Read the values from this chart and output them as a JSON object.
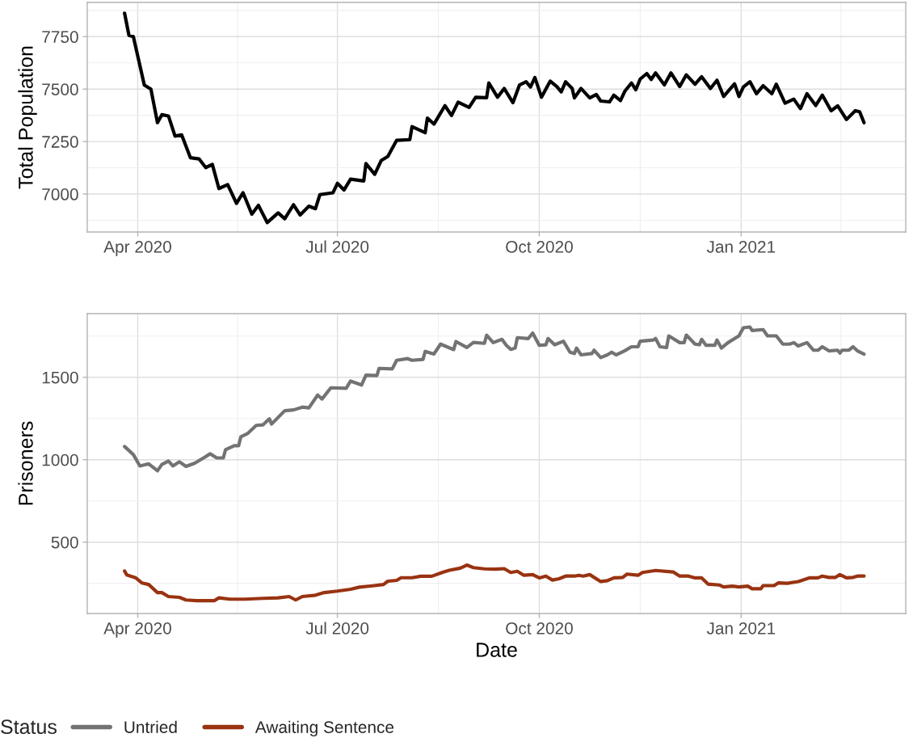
{
  "chart_data": [
    {
      "type": "line",
      "ylabel": "Total Population",
      "grid": true,
      "legend": false,
      "xlim": [
        "2020-03-09",
        "2021-03-17"
      ],
      "ylim": [
        6819,
        7913
      ],
      "yticks": [
        7000,
        7250,
        7500,
        7750
      ],
      "xticks": [
        {
          "value": "2020-04-01",
          "label": "Apr 2020"
        },
        {
          "value": "2020-07-01",
          "label": "Jul 2020"
        },
        {
          "value": "2020-10-01",
          "label": "Oct 2020"
        },
        {
          "value": "2021-01-01",
          "label": "Jan 2021"
        }
      ],
      "series": [
        {
          "color": "#000000",
          "x": [
            "2020-03-26",
            "2020-03-28",
            "2020-03-30",
            "2020-04-04",
            "2020-04-07",
            "2020-04-10",
            "2020-04-12",
            "2020-04-15",
            "2020-04-18",
            "2020-04-21",
            "2020-04-25",
            "2020-04-29",
            "2020-05-02",
            "2020-05-05",
            "2020-05-08",
            "2020-05-12",
            "2020-05-16",
            "2020-05-19",
            "2020-05-23",
            "2020-05-26",
            "2020-05-30",
            "2020-06-04",
            "2020-06-07",
            "2020-06-11",
            "2020-06-14",
            "2020-06-18",
            "2020-06-21",
            "2020-06-23",
            "2020-06-29",
            "2020-07-01",
            "2020-07-04",
            "2020-07-07",
            "2020-07-13",
            "2020-07-14",
            "2020-07-18",
            "2020-07-21",
            "2020-07-24",
            "2020-07-28",
            "2020-08-03",
            "2020-08-04",
            "2020-08-10",
            "2020-08-11",
            "2020-08-14",
            "2020-08-19",
            "2020-08-22",
            "2020-08-25",
            "2020-08-30",
            "2020-09-02",
            "2020-09-07",
            "2020-09-08",
            "2020-09-12",
            "2020-09-15",
            "2020-09-19",
            "2020-09-22",
            "2020-09-25",
            "2020-09-27",
            "2020-09-29",
            "2020-10-02",
            "2020-10-06",
            "2020-10-09",
            "2020-10-11",
            "2020-10-13",
            "2020-10-16",
            "2020-10-17",
            "2020-10-20",
            "2020-10-24",
            "2020-10-27",
            "2020-10-29",
            "2020-11-02",
            "2020-11-04",
            "2020-11-07",
            "2020-11-09",
            "2020-11-12",
            "2020-11-14",
            "2020-11-16",
            "2020-11-19",
            "2020-11-21",
            "2020-11-23",
            "2020-11-27",
            "2020-11-30",
            "2020-12-04",
            "2020-12-07",
            "2020-12-11",
            "2020-12-14",
            "2020-12-18",
            "2020-12-21",
            "2020-12-24",
            "2020-12-29",
            "2020-12-31",
            "2021-01-02",
            "2021-01-05",
            "2021-01-08",
            "2021-01-11",
            "2021-01-15",
            "2021-01-17",
            "2021-01-21",
            "2021-01-25",
            "2021-01-28",
            "2021-01-31",
            "2021-02-04",
            "2021-02-07",
            "2021-02-11",
            "2021-02-14",
            "2021-02-18",
            "2021-02-22",
            "2021-02-24",
            "2021-02-26"
          ],
          "values": [
            7862,
            7756,
            7750,
            7519,
            7500,
            7340,
            7378,
            7372,
            7276,
            7282,
            7173,
            7167,
            7126,
            7141,
            7026,
            7045,
            6955,
            7006,
            6904,
            6946,
            6864,
            6910,
            6882,
            6949,
            6900,
            6942,
            6930,
            6997,
            7006,
            7051,
            7019,
            7071,
            7062,
            7145,
            7094,
            7160,
            7179,
            7256,
            7259,
            7321,
            7292,
            7362,
            7333,
            7421,
            7374,
            7438,
            7413,
            7461,
            7459,
            7529,
            7461,
            7503,
            7435,
            7520,
            7535,
            7510,
            7555,
            7461,
            7538,
            7512,
            7487,
            7535,
            7503,
            7458,
            7503,
            7458,
            7474,
            7443,
            7439,
            7471,
            7445,
            7490,
            7529,
            7497,
            7548,
            7574,
            7546,
            7577,
            7520,
            7577,
            7512,
            7568,
            7523,
            7559,
            7503,
            7542,
            7465,
            7525,
            7465,
            7510,
            7535,
            7478,
            7516,
            7478,
            7523,
            7433,
            7452,
            7407,
            7478,
            7422,
            7471,
            7397,
            7420,
            7355,
            7397,
            7392,
            7340
          ]
        }
      ]
    },
    {
      "type": "line",
      "xlabel": "Date",
      "ylabel": "Prisoners",
      "legend_title": "Status",
      "legend": "bottom",
      "grid": true,
      "xlim": [
        "2020-03-09",
        "2021-03-17"
      ],
      "ylim": [
        67,
        1886
      ],
      "yticks": [
        500,
        1000,
        1500
      ],
      "xticks": [
        {
          "value": "2020-04-01",
          "label": "Apr 2020"
        },
        {
          "value": "2020-07-01",
          "label": "Jul 2020"
        },
        {
          "value": "2020-10-01",
          "label": "Oct 2020"
        },
        {
          "value": "2021-01-01",
          "label": "Jan 2021"
        }
      ],
      "series": [
        {
          "name": "Untried",
          "color": "#737373",
          "x": [
            "2020-03-26",
            "2020-03-30",
            "2020-04-02",
            "2020-04-06",
            "2020-04-10",
            "2020-04-12",
            "2020-04-15",
            "2020-04-17",
            "2020-04-20",
            "2020-04-23",
            "2020-04-27",
            "2020-05-01",
            "2020-05-04",
            "2020-05-07",
            "2020-05-10",
            "2020-05-11",
            "2020-05-15",
            "2020-05-17",
            "2020-05-18",
            "2020-05-21",
            "2020-05-25",
            "2020-05-28",
            "2020-05-31",
            "2020-06-01",
            "2020-06-07",
            "2020-06-11",
            "2020-06-15",
            "2020-06-18",
            "2020-06-22",
            "2020-06-24",
            "2020-06-28",
            "2020-07-05",
            "2020-07-07",
            "2020-07-12",
            "2020-07-14",
            "2020-07-19",
            "2020-07-20",
            "2020-07-26",
            "2020-07-28",
            "2020-08-02",
            "2020-08-04",
            "2020-08-09",
            "2020-08-10",
            "2020-08-14",
            "2020-08-17",
            "2020-08-23",
            "2020-08-24",
            "2020-08-29",
            "2020-09-01",
            "2020-09-06",
            "2020-09-07",
            "2020-09-10",
            "2020-09-14",
            "2020-09-16",
            "2020-09-18",
            "2020-09-20",
            "2020-09-21",
            "2020-09-26",
            "2020-09-28",
            "2020-10-01",
            "2020-10-04",
            "2020-10-05",
            "2020-10-08",
            "2020-10-12",
            "2020-10-15",
            "2020-10-17",
            "2020-10-18",
            "2020-10-20",
            "2020-10-25",
            "2020-10-26",
            "2020-10-29",
            "2020-11-01",
            "2020-11-03",
            "2020-11-05",
            "2020-11-09",
            "2020-11-12",
            "2020-11-15",
            "2020-11-16",
            "2020-11-22",
            "2020-11-23",
            "2020-11-25",
            "2020-11-28",
            "2020-11-29",
            "2020-12-04",
            "2020-12-06",
            "2020-12-07",
            "2020-12-11",
            "2020-12-13",
            "2020-12-14",
            "2020-12-16",
            "2020-12-20",
            "2020-12-21",
            "2020-12-23",
            "2020-12-26",
            "2020-12-31",
            "2021-01-02",
            "2021-01-05",
            "2021-01-06",
            "2021-01-11",
            "2021-01-13",
            "2021-01-17",
            "2021-01-20",
            "2021-01-23",
            "2021-01-25",
            "2021-01-27",
            "2021-01-31",
            "2021-02-03",
            "2021-02-05",
            "2021-02-07",
            "2021-02-10",
            "2021-02-14",
            "2021-02-15",
            "2021-02-16",
            "2021-02-19",
            "2021-02-21",
            "2021-02-23",
            "2021-02-26"
          ],
          "values": [
            1080,
            1031,
            962,
            975,
            933,
            971,
            992,
            962,
            987,
            959,
            979,
            1011,
            1036,
            1011,
            1011,
            1060,
            1085,
            1085,
            1139,
            1158,
            1208,
            1211,
            1248,
            1216,
            1297,
            1302,
            1319,
            1314,
            1392,
            1368,
            1436,
            1433,
            1477,
            1453,
            1513,
            1510,
            1554,
            1551,
            1603,
            1613,
            1603,
            1608,
            1657,
            1641,
            1701,
            1668,
            1717,
            1681,
            1711,
            1706,
            1755,
            1710,
            1730,
            1694,
            1669,
            1677,
            1740,
            1735,
            1768,
            1694,
            1697,
            1735,
            1697,
            1719,
            1652,
            1644,
            1677,
            1636,
            1644,
            1664,
            1619,
            1636,
            1652,
            1636,
            1661,
            1685,
            1685,
            1719,
            1726,
            1735,
            1685,
            1680,
            1751,
            1710,
            1710,
            1756,
            1701,
            1697,
            1730,
            1694,
            1694,
            1726,
            1677,
            1710,
            1751,
            1800,
            1805,
            1784,
            1789,
            1751,
            1751,
            1701,
            1701,
            1710,
            1690,
            1710,
            1664,
            1664,
            1685,
            1660,
            1664,
            1647,
            1664,
            1664,
            1685,
            1660,
            1640
          ]
        },
        {
          "name": "Awaiting Sentence",
          "color": "#993311",
          "x": [
            "2020-03-26",
            "2020-03-27",
            "2020-03-31",
            "2020-04-03",
            "2020-04-06",
            "2020-04-10",
            "2020-04-12",
            "2020-04-15",
            "2020-04-20",
            "2020-04-23",
            "2020-04-28",
            "2020-05-06",
            "2020-05-08",
            "2020-05-13",
            "2020-05-20",
            "2020-05-28",
            "2020-06-04",
            "2020-06-09",
            "2020-06-12",
            "2020-06-15",
            "2020-06-21",
            "2020-06-25",
            "2020-07-01",
            "2020-07-07",
            "2020-07-11",
            "2020-07-17",
            "2020-07-22",
            "2020-07-24",
            "2020-07-28",
            "2020-07-30",
            "2020-08-04",
            "2020-08-08",
            "2020-08-13",
            "2020-08-18",
            "2020-08-21",
            "2020-08-26",
            "2020-08-29",
            "2020-09-01",
            "2020-09-06",
            "2020-09-11",
            "2020-09-15",
            "2020-09-18",
            "2020-09-21",
            "2020-09-24",
            "2020-09-28",
            "2020-10-01",
            "2020-10-04",
            "2020-10-07",
            "2020-10-10",
            "2020-10-13",
            "2020-10-17",
            "2020-10-19",
            "2020-10-21",
            "2020-10-24",
            "2020-10-29",
            "2020-11-01",
            "2020-11-04",
            "2020-11-08",
            "2020-11-10",
            "2020-11-15",
            "2020-11-17",
            "2020-11-23",
            "2020-12-01",
            "2020-12-04",
            "2020-12-08",
            "2020-12-11",
            "2020-12-14",
            "2020-12-17",
            "2020-12-22",
            "2020-12-24",
            "2020-12-28",
            "2020-12-31",
            "2021-01-04",
            "2021-01-06",
            "2021-01-10",
            "2021-01-11",
            "2021-01-16",
            "2021-01-18",
            "2021-01-22",
            "2021-01-27",
            "2021-02-01",
            "2021-02-05",
            "2021-02-07",
            "2021-02-10",
            "2021-02-13",
            "2021-02-15",
            "2021-02-18",
            "2021-02-21",
            "2021-02-23",
            "2021-02-26"
          ],
          "values": [
            325,
            301,
            284,
            252,
            243,
            194,
            194,
            170,
            165,
            149,
            145,
            145,
            162,
            154,
            154,
            159,
            162,
            170,
            149,
            170,
            178,
            194,
            203,
            214,
            227,
            235,
            243,
            263,
            268,
            284,
            284,
            293,
            293,
            317,
            329,
            342,
            361,
            345,
            338,
            336,
            339,
            316,
            323,
            299,
            303,
            283,
            294,
            270,
            278,
            294,
            294,
            299,
            294,
            303,
            261,
            266,
            283,
            286,
            306,
            299,
            316,
            328,
            319,
            294,
            294,
            283,
            283,
            245,
            240,
            228,
            233,
            228,
            233,
            217,
            217,
            236,
            236,
            253,
            250,
            261,
            283,
            283,
            294,
            286,
            286,
            303,
            283,
            286,
            294,
            294
          ]
        }
      ]
    }
  ]
}
